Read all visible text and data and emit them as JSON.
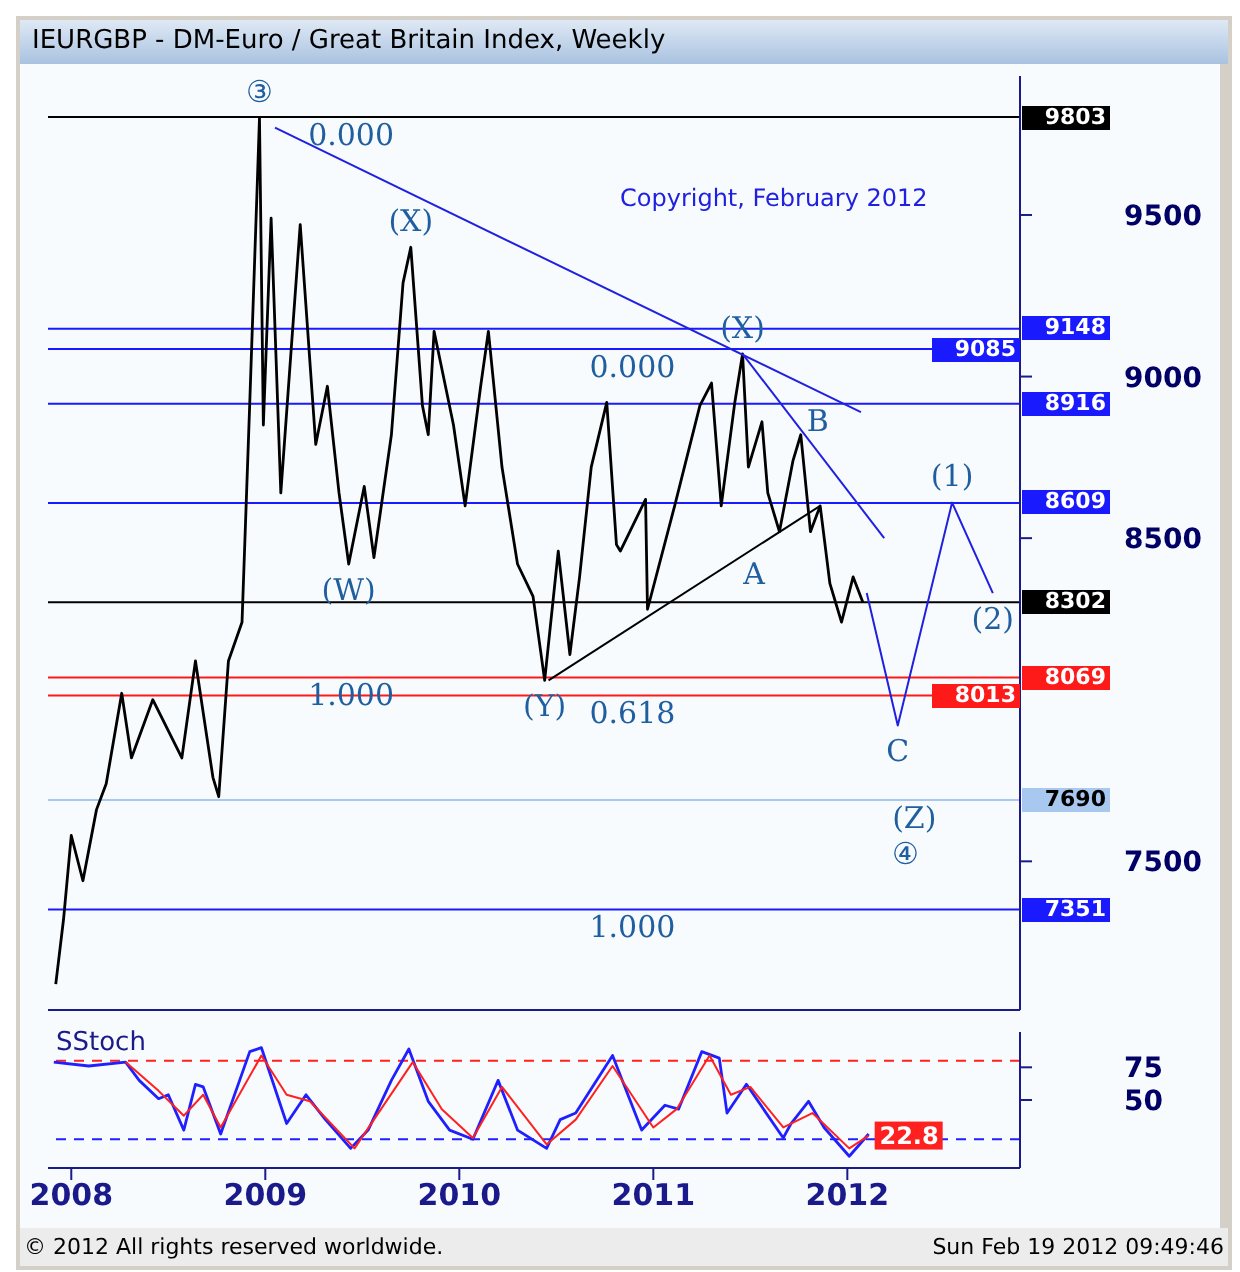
{
  "chart_data": [
    {
      "type": "line",
      "title": "IEURGBP - DM-Euro / Great Britain Index, Weekly",
      "xlim": [
        2007.88,
        2012.89
      ],
      "xticks": [
        2008,
        2009,
        2010,
        2011,
        2012
      ],
      "ylim": [
        7040,
        9930
      ],
      "yticks": [
        7500,
        8500,
        9000,
        9500
      ],
      "tick_labels": "y",
      "grid": false,
      "legend": false,
      "marker": "none",
      "series": [
        {
          "color": "#000000",
          "x": [
            2007.92,
            2007.96,
            2008.0,
            2008.06,
            2008.13,
            2008.18,
            2008.26,
            2008.31,
            2008.42,
            2008.57,
            2008.64,
            2008.73,
            2008.76,
            2008.81,
            2008.88,
            2008.92,
            2008.96,
            2008.97,
            2008.99,
            2009.03,
            2009.08,
            2009.18,
            2009.26,
            2009.32,
            2009.38,
            2009.43,
            2009.51,
            2009.56,
            2009.65,
            2009.71,
            2009.75,
            2009.81,
            2009.84,
            2009.87,
            2009.97,
            2010.03,
            2010.11,
            2010.15,
            2010.22,
            2010.3,
            2010.38,
            2010.44,
            2010.51,
            2010.57,
            2010.62,
            2010.68,
            2010.76,
            2010.81,
            2010.83,
            2010.96,
            2010.97,
            2011.11,
            2011.24,
            2011.3,
            2011.35,
            2011.42,
            2011.46,
            2011.49,
            2011.56,
            2011.59,
            2011.65,
            2011.72,
            2011.76,
            2011.81,
            2011.86,
            2011.91,
            2011.97,
            2012.03,
            2012.08
          ],
          "values": [
            7120,
            7320,
            7580,
            7440,
            7660,
            7740,
            8020,
            7820,
            8000,
            7820,
            8120,
            7760,
            7700,
            8120,
            8240,
            8920,
            9620,
            9800,
            8850,
            9490,
            8640,
            9470,
            8790,
            8970,
            8640,
            8420,
            8660,
            8440,
            8820,
            9290,
            9400,
            8910,
            8820,
            9140,
            8850,
            8600,
            8970,
            9140,
            8720,
            8420,
            8320,
            8060,
            8460,
            8140,
            8380,
            8720,
            8920,
            8480,
            8460,
            8620,
            8280,
            8600,
            8910,
            8980,
            8600,
            8920,
            9070,
            8720,
            8860,
            8640,
            8520,
            8740,
            8820,
            8520,
            8600,
            8360,
            8240,
            8380,
            8302
          ]
        },
        {
          "color": "#2020e0",
          "x": [
            2009.05,
            2012.07
          ],
          "values": [
            9770,
            8890
          ]
        },
        {
          "color": "#2020e0",
          "x": [
            2011.46,
            2012.19
          ],
          "values": [
            9070,
            8500
          ]
        },
        {
          "color": "#000000",
          "x": [
            2010.46,
            2011.86
          ],
          "values": [
            8060,
            8600
          ]
        },
        {
          "color": "#2020e0",
          "x": [
            2012.1,
            2012.26,
            2012.54,
            2012.75
          ],
          "values": [
            8330,
            7920,
            8610,
            8330
          ]
        }
      ],
      "ref_lines": [
        {
          "axis": "y",
          "value": 9803,
          "label": "9803",
          "color": "#000000"
        },
        {
          "axis": "y",
          "value": 9148,
          "label": "9148",
          "color": "#1a1aff"
        },
        {
          "axis": "y",
          "value": 9085,
          "label": "9085",
          "color": "#1a1aff"
        },
        {
          "axis": "y",
          "value": 8916,
          "label": "8916",
          "color": "#1a1aff"
        },
        {
          "axis": "y",
          "value": 8609,
          "label": "8609",
          "color": "#1a1aff"
        },
        {
          "axis": "y",
          "value": 8302,
          "label": "8302",
          "color": "#000000"
        },
        {
          "axis": "y",
          "value": 8069,
          "label": "8069",
          "color": "#ff1a1a"
        },
        {
          "axis": "y",
          "value": 8013,
          "label": "8013",
          "color": "#ff1a1a"
        },
        {
          "axis": "y",
          "value": 7690,
          "label": "7690",
          "color": "#a8c8f0"
        },
        {
          "axis": "y",
          "value": 7351,
          "label": "7351",
          "color": "#1a1aff"
        }
      ],
      "annotations": [
        "Copyright, February 2012",
        {
          "text": "③",
          "x": 2008.97,
          "y": 9800
        },
        {
          "text": "0.000",
          "x": 2009.19,
          "y": 9803
        },
        {
          "text": "(X)",
          "x": 2009.75,
          "y": 9400
        },
        {
          "text": "(W)",
          "x": 2009.43,
          "y": 8420
        },
        {
          "text": "1.000",
          "x": 2009.19,
          "y": 8069
        },
        {
          "text": "(Y)",
          "x": 2010.44,
          "y": 8060
        },
        {
          "text": "0.618",
          "x": 2010.64,
          "y": 8013
        },
        {
          "text": "0.000",
          "x": 2010.64,
          "y": 9085
        },
        {
          "text": "1.000",
          "x": 2010.64,
          "y": 7351
        },
        {
          "text": "(X)",
          "x": 2011.46,
          "y": 9070
        },
        {
          "text": "B",
          "x": 2011.76,
          "y": 8916
        },
        {
          "text": "A",
          "x": 2011.52,
          "y": 8470
        },
        {
          "text": "C",
          "x": 2012.26,
          "y": 7920
        },
        {
          "text": "(Z)",
          "x": 2012.2,
          "y": 7690
        },
        {
          "text": "④",
          "x": 2012.2,
          "y": 7690
        },
        {
          "text": "(1)",
          "x": 2012.54,
          "y": 8610
        },
        {
          "text": "(2)",
          "x": 2012.75,
          "y": 8330
        }
      ]
    },
    {
      "type": "line",
      "title": "SStoch",
      "xlim": [
        2007.88,
        2012.89
      ],
      "xticks": [
        2008,
        2009,
        2010,
        2011,
        2012
      ],
      "ylim": [
        -2,
        102
      ],
      "yticks": [
        50,
        75
      ],
      "grid": false,
      "legend": false,
      "marker": "none",
      "series": [
        {
          "color": "#2020ff",
          "x": [
            2007.91,
            2008.09,
            2008.28,
            2008.35,
            2008.45,
            2008.5,
            2008.58,
            2008.64,
            2008.68,
            2008.77,
            2008.92,
            2008.98,
            2009.11,
            2009.21,
            2009.31,
            2009.44,
            2009.53,
            2009.65,
            2009.74,
            2009.84,
            2009.95,
            2010.07,
            2010.2,
            2010.3,
            2010.45,
            2010.52,
            2010.6,
            2010.79,
            2010.94,
            2011.06,
            2011.13,
            2011.25,
            2011.34,
            2011.38,
            2011.48,
            2011.67,
            2011.71,
            2011.8,
            2011.88,
            2012.01,
            2012.11
          ],
          "values": [
            79,
            76,
            79,
            65,
            51,
            54,
            27,
            62,
            60,
            24,
            87,
            90,
            32,
            54,
            35,
            13,
            27,
            65,
            89,
            49,
            27,
            20,
            65,
            27,
            13,
            35,
            40,
            84,
            27,
            46,
            43,
            87,
            82,
            40,
            62,
            21,
            32,
            49,
            29,
            7,
            24
          ]
        },
        {
          "color": "#ff2020",
          "x": [
            2008.28,
            2008.45,
            2008.58,
            2008.68,
            2008.77,
            2008.98,
            2009.11,
            2009.23,
            2009.46,
            2009.76,
            2009.91,
            2010.07,
            2010.22,
            2010.45,
            2010.6,
            2010.79,
            2011.0,
            2011.12,
            2011.29,
            2011.4,
            2011.5,
            2011.67,
            2011.82,
            2012.01,
            2012.11
          ],
          "values": [
            79,
            57,
            38,
            54,
            29,
            84,
            54,
            49,
            13,
            79,
            43,
            21,
            60,
            16,
            35,
            76,
            29,
            43,
            84,
            54,
            60,
            29,
            40,
            13,
            22.8
          ],
          "value_labels": [
            null,
            null,
            null,
            null,
            null,
            null,
            null,
            null,
            null,
            null,
            null,
            null,
            null,
            null,
            null,
            null,
            null,
            null,
            null,
            null,
            null,
            null,
            null,
            null,
            "22.8"
          ]
        }
      ],
      "ref_lines": [
        {
          "axis": "y",
          "value": 80,
          "color": "#ff2020",
          "line_style": "dashed"
        },
        {
          "axis": "y",
          "value": 20,
          "color": "#2020ff",
          "line_style": "dashed"
        }
      ],
      "annotations": [
        "© 2012 All rights reserved worldwide.",
        "Sun Feb 19 2012 09:49:46"
      ]
    }
  ]
}
